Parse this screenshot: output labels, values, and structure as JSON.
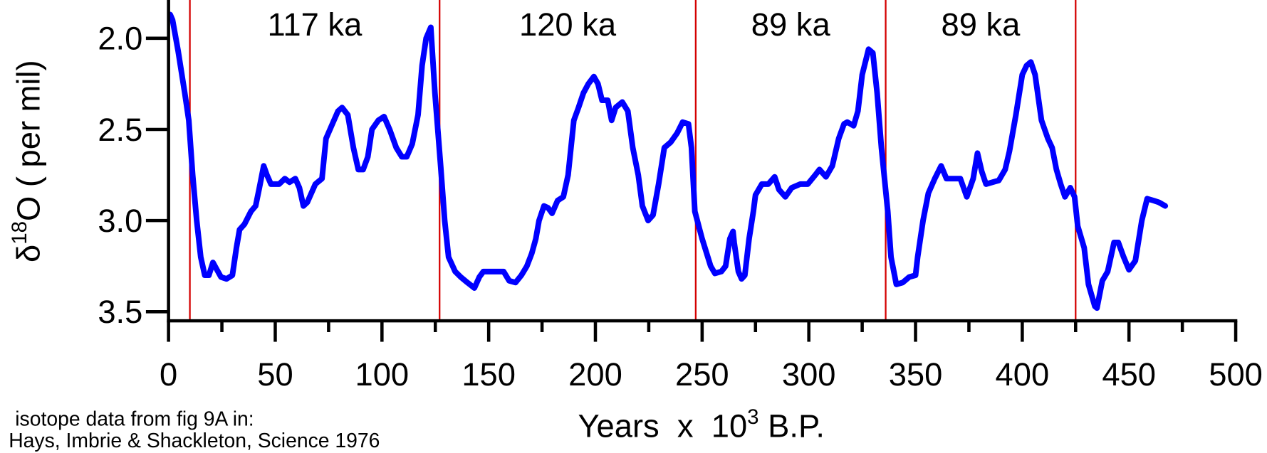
{
  "chart_data": {
    "type": "line",
    "y_label": {
      "prefix": "δ",
      "sup": "18",
      "suffix": "O ( per mil)"
    },
    "x_label": {
      "prefix": "Years  x  10",
      "sup": "3",
      "suffix": " B.P."
    },
    "source_notes": [
      "isotope data from fig 9A in:",
      "Hays, Imbrie & Shackleton, Science 1976"
    ],
    "color": "#0000ff",
    "boundary_color": "#d40000",
    "boundaries": [
      10,
      127,
      247,
      336,
      425
    ],
    "interval_labels": [
      "117 ka",
      "120 ka",
      "89 ka",
      "89 ka"
    ],
    "xlim": [
      0,
      500
    ],
    "xticks": [
      0,
      50,
      100,
      150,
      200,
      250,
      300,
      350,
      400,
      450,
      500
    ],
    "xminorticks": [
      25,
      75,
      125,
      175,
      225,
      275,
      325,
      375,
      425,
      475
    ],
    "ylim": [
      3.55,
      1.79
    ],
    "yticks": [
      {
        "value": 2.0,
        "label": "2.0"
      },
      2.5,
      {
        "value": 3.0,
        "label": "3.0"
      },
      3.5
    ],
    "x": [
      0.8,
      1.9,
      4.5,
      7.6,
      9.5,
      11.3,
      13.2,
      15.1,
      17,
      18.9,
      20.8,
      22.7,
      24.6,
      27.2,
      29.9,
      31.8,
      33.3,
      35.6,
      38.6,
      40.8,
      42.4,
      44.6,
      46.1,
      48,
      51.8,
      54.5,
      56.7,
      59.4,
      61.3,
      63.2,
      65,
      68.8,
      71.9,
      73.8,
      76.4,
      79.4,
      81.3,
      84,
      86.6,
      88.9,
      91.2,
      93.4,
      95.3,
      98.3,
      101,
      103.6,
      106.7,
      109.3,
      111.6,
      114.2,
      116.9,
      118.8,
      120.7,
      122.9,
      124.8,
      127.5,
      129.4,
      131.2,
      134.3,
      136.9,
      140,
      143.3,
      145.6,
      147.5,
      152,
      157,
      159.6,
      162.6,
      165.3,
      167.9,
      170.2,
      172.1,
      173.6,
      175.9,
      177.8,
      179.7,
      182.3,
      185,
      187.2,
      189.9,
      192.1,
      194.4,
      196.7,
      199.3,
      201.2,
      203.1,
      205.8,
      207.6,
      209.5,
      212.6,
      215.2,
      217.5,
      220.1,
      222,
      224.7,
      227,
      229.6,
      232.3,
      235.3,
      238.3,
      240.9,
      243.6,
      245,
      246.6,
      250,
      254,
      256,
      259,
      261,
      263,
      264.5,
      265,
      267,
      268.5,
      270,
      272,
      274,
      275,
      278,
      281,
      284,
      286,
      289,
      292,
      296,
      299.5,
      303,
      305,
      308,
      311,
      314,
      316.5,
      318,
      321,
      323,
      325,
      328,
      330,
      332,
      334,
      337,
      338.5,
      341,
      344,
      347,
      350,
      351,
      353.5,
      356,
      359,
      362,
      364.5,
      368,
      371,
      374,
      377,
      379,
      381,
      383,
      386,
      389,
      392,
      394,
      397,
      400,
      402,
      404,
      406,
      409,
      412,
      414,
      416,
      418,
      420,
      422.5,
      424.5,
      426,
      429,
      431,
      434,
      435,
      437.5,
      440,
      443,
      445,
      447.5,
      450,
      453,
      456,
      458.5,
      461.5,
      464,
      467
    ],
    "values": [
      1.87,
      1.9,
      2.07,
      2.3,
      2.45,
      2.75,
      3.0,
      3.2,
      3.3,
      3.3,
      3.23,
      3.27,
      3.31,
      3.32,
      3.3,
      3.15,
      3.05,
      3.02,
      2.95,
      2.92,
      2.83,
      2.7,
      2.75,
      2.8,
      2.8,
      2.77,
      2.79,
      2.77,
      2.82,
      2.92,
      2.9,
      2.8,
      2.77,
      2.55,
      2.48,
      2.4,
      2.38,
      2.42,
      2.6,
      2.72,
      2.72,
      2.65,
      2.5,
      2.45,
      2.43,
      2.5,
      2.6,
      2.65,
      2.65,
      2.58,
      2.42,
      2.15,
      2.0,
      1.94,
      2.3,
      2.7,
      3.0,
      3.2,
      3.28,
      3.31,
      3.34,
      3.37,
      3.31,
      3.28,
      3.28,
      3.28,
      3.33,
      3.34,
      3.3,
      3.25,
      3.18,
      3.1,
      3.0,
      2.92,
      2.93,
      2.96,
      2.89,
      2.87,
      2.75,
      2.45,
      2.38,
      2.3,
      2.25,
      2.21,
      2.25,
      2.34,
      2.34,
      2.45,
      2.38,
      2.35,
      2.4,
      2.6,
      2.75,
      2.92,
      3.0,
      2.97,
      2.8,
      2.6,
      2.57,
      2.52,
      2.46,
      2.47,
      2.6,
      2.95,
      3.1,
      3.25,
      3.29,
      3.28,
      3.25,
      3.1,
      3.06,
      3.12,
      3.28,
      3.32,
      3.3,
      3.1,
      2.95,
      2.86,
      2.8,
      2.8,
      2.76,
      2.83,
      2.87,
      2.82,
      2.8,
      2.8,
      2.75,
      2.72,
      2.76,
      2.7,
      2.55,
      2.47,
      2.46,
      2.48,
      2.4,
      2.2,
      2.06,
      2.08,
      2.3,
      2.6,
      2.95,
      3.2,
      3.35,
      3.34,
      3.31,
      3.3,
      3.2,
      3.0,
      2.85,
      2.77,
      2.7,
      2.77,
      2.77,
      2.77,
      2.87,
      2.77,
      2.63,
      2.73,
      2.8,
      2.79,
      2.78,
      2.72,
      2.62,
      2.42,
      2.2,
      2.15,
      2.13,
      2.2,
      2.45,
      2.55,
      2.6,
      2.72,
      2.8,
      2.87,
      2.82,
      2.87,
      3.03,
      3.15,
      3.35,
      3.47,
      3.48,
      3.33,
      3.28,
      3.12,
      3.12,
      3.2,
      3.27,
      3.22,
      3.0,
      2.88,
      2.89,
      2.9,
      2.92
    ]
  }
}
